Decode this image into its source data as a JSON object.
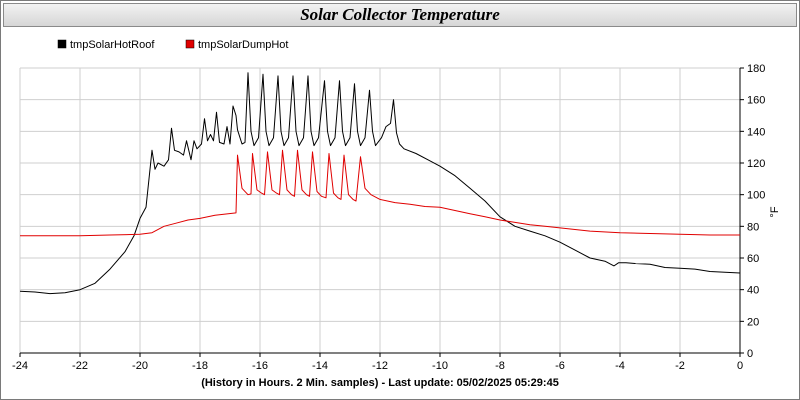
{
  "chart_data": {
    "type": "line",
    "title": "Solar Collector Temperature",
    "xlabel": "(History in Hours. 2 Min. samples) - Last update: 05/02/2025 05:29:45",
    "ylabel": "°F",
    "xlim": [
      -24,
      0
    ],
    "ylim": [
      0,
      180
    ],
    "x_ticks": [
      -24,
      -22,
      -20,
      -18,
      -16,
      -14,
      -12,
      -10,
      -8,
      -6,
      -4,
      -2,
      0
    ],
    "y_ticks": [
      0,
      20,
      40,
      60,
      80,
      100,
      120,
      140,
      160,
      180
    ],
    "grid": true,
    "legend_position": "top-left",
    "series": [
      {
        "name": "tmpSolarHotRoof",
        "color": "#000000",
        "points": [
          [
            -24,
            39
          ],
          [
            -23.5,
            38.5
          ],
          [
            -23,
            37.5
          ],
          [
            -22.5,
            38
          ],
          [
            -22,
            40
          ],
          [
            -21.5,
            44
          ],
          [
            -21,
            53
          ],
          [
            -20.5,
            64
          ],
          [
            -20.2,
            74
          ],
          [
            -20,
            85
          ],
          [
            -19.8,
            92
          ],
          [
            -19.6,
            128
          ],
          [
            -19.5,
            116
          ],
          [
            -19.4,
            120
          ],
          [
            -19.2,
            118
          ],
          [
            -19.05,
            122
          ],
          [
            -18.95,
            142
          ],
          [
            -18.85,
            128
          ],
          [
            -18.7,
            127
          ],
          [
            -18.55,
            125
          ],
          [
            -18.45,
            134
          ],
          [
            -18.3,
            122
          ],
          [
            -18.2,
            134
          ],
          [
            -18.1,
            129
          ],
          [
            -17.95,
            132
          ],
          [
            -17.85,
            148
          ],
          [
            -17.75,
            134
          ],
          [
            -17.65,
            138
          ],
          [
            -17.55,
            134
          ],
          [
            -17.45,
            152
          ],
          [
            -17.35,
            133
          ],
          [
            -17.2,
            132
          ],
          [
            -17.1,
            143
          ],
          [
            -17.0,
            132
          ],
          [
            -16.9,
            156
          ],
          [
            -16.8,
            150
          ],
          [
            -16.75,
            141
          ],
          [
            -16.6,
            132
          ],
          [
            -16.5,
            133
          ],
          [
            -16.4,
            177
          ],
          [
            -16.3,
            140
          ],
          [
            -16.2,
            131
          ],
          [
            -16.05,
            136
          ],
          [
            -15.9,
            176
          ],
          [
            -15.8,
            140
          ],
          [
            -15.7,
            131
          ],
          [
            -15.55,
            136
          ],
          [
            -15.4,
            175
          ],
          [
            -15.3,
            140
          ],
          [
            -15.2,
            131
          ],
          [
            -15.05,
            136
          ],
          [
            -14.9,
            175
          ],
          [
            -14.8,
            140
          ],
          [
            -14.7,
            131
          ],
          [
            -14.55,
            136
          ],
          [
            -14.4,
            175
          ],
          [
            -14.3,
            140
          ],
          [
            -14.2,
            131
          ],
          [
            -14.05,
            136
          ],
          [
            -13.85,
            172
          ],
          [
            -13.75,
            140
          ],
          [
            -13.65,
            131
          ],
          [
            -13.5,
            136
          ],
          [
            -13.35,
            172
          ],
          [
            -13.25,
            140
          ],
          [
            -13.15,
            131
          ],
          [
            -13.0,
            136
          ],
          [
            -12.85,
            170
          ],
          [
            -12.75,
            140
          ],
          [
            -12.65,
            131
          ],
          [
            -12.5,
            136
          ],
          [
            -12.35,
            166
          ],
          [
            -12.25,
            140
          ],
          [
            -12.15,
            131
          ],
          [
            -11.95,
            136
          ],
          [
            -11.8,
            143
          ],
          [
            -11.65,
            145
          ],
          [
            -11.55,
            160
          ],
          [
            -11.45,
            139
          ],
          [
            -11.35,
            132
          ],
          [
            -11.2,
            129
          ],
          [
            -10.8,
            126
          ],
          [
            -10.4,
            122
          ],
          [
            -10,
            118
          ],
          [
            -9.5,
            112
          ],
          [
            -9,
            104
          ],
          [
            -8.5,
            96
          ],
          [
            -8,
            86
          ],
          [
            -7.5,
            80
          ],
          [
            -7,
            77
          ],
          [
            -6.5,
            74
          ],
          [
            -6,
            70
          ],
          [
            -5.5,
            65
          ],
          [
            -5,
            60
          ],
          [
            -4.5,
            58
          ],
          [
            -4.2,
            55
          ],
          [
            -4.05,
            57
          ],
          [
            -3.8,
            57
          ],
          [
            -3.5,
            56.5
          ],
          [
            -3,
            56
          ],
          [
            -2.5,
            54
          ],
          [
            -2,
            53.5
          ],
          [
            -1.5,
            53
          ],
          [
            -1,
            51.5
          ],
          [
            -0.5,
            51
          ],
          [
            0,
            50.5
          ]
        ]
      },
      {
        "name": "tmpSolarDumpHot",
        "color": "#e00000",
        "points": [
          [
            -24,
            74
          ],
          [
            -22,
            74
          ],
          [
            -21,
            74.5
          ],
          [
            -20,
            75
          ],
          [
            -19.6,
            76
          ],
          [
            -19.2,
            80
          ],
          [
            -18.8,
            82
          ],
          [
            -18.4,
            84
          ],
          [
            -18,
            85
          ],
          [
            -17.5,
            87
          ],
          [
            -16.8,
            88.5
          ],
          [
            -16.75,
            125
          ],
          [
            -16.6,
            104
          ],
          [
            -16.4,
            100
          ],
          [
            -16.3,
            100.5
          ],
          [
            -16.25,
            126
          ],
          [
            -16.1,
            103
          ],
          [
            -15.95,
            101
          ],
          [
            -15.85,
            100
          ],
          [
            -15.75,
            127
          ],
          [
            -15.6,
            103
          ],
          [
            -15.45,
            101
          ],
          [
            -15.35,
            100
          ],
          [
            -15.25,
            128
          ],
          [
            -15.1,
            103
          ],
          [
            -14.95,
            100
          ],
          [
            -14.85,
            99
          ],
          [
            -14.75,
            128
          ],
          [
            -14.6,
            103
          ],
          [
            -14.45,
            100
          ],
          [
            -14.35,
            99
          ],
          [
            -14.25,
            127
          ],
          [
            -14.1,
            102
          ],
          [
            -13.95,
            99
          ],
          [
            -13.8,
            98
          ],
          [
            -13.7,
            126
          ],
          [
            -13.55,
            101
          ],
          [
            -13.4,
            98
          ],
          [
            -13.3,
            97
          ],
          [
            -13.2,
            125
          ],
          [
            -13.05,
            100
          ],
          [
            -12.9,
            97
          ],
          [
            -12.8,
            96
          ],
          [
            -12.65,
            124
          ],
          [
            -12.5,
            104
          ],
          [
            -12.3,
            100
          ],
          [
            -12,
            97
          ],
          [
            -11.5,
            95
          ],
          [
            -11,
            94
          ],
          [
            -10.5,
            92.5
          ],
          [
            -10,
            92
          ],
          [
            -9.5,
            90
          ],
          [
            -9,
            88
          ],
          [
            -8.5,
            86
          ],
          [
            -8,
            84
          ],
          [
            -7.5,
            82.5
          ],
          [
            -7,
            81
          ],
          [
            -6.5,
            80
          ],
          [
            -6,
            79
          ],
          [
            -5.5,
            78
          ],
          [
            -5,
            77
          ],
          [
            -4,
            76
          ],
          [
            -3,
            75.5
          ],
          [
            -2,
            75
          ],
          [
            -1,
            74.5
          ],
          [
            0,
            74.5
          ]
        ]
      }
    ]
  }
}
